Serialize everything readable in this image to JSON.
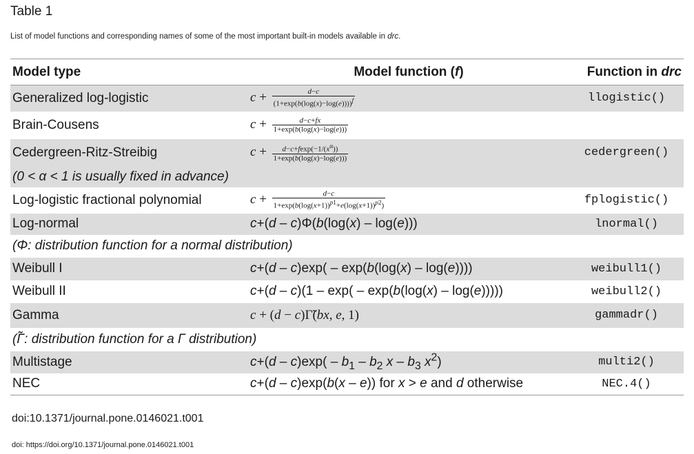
{
  "title": "Table 1",
  "caption_main": "List of model functions and corresponding names of some of the most important built-in models available in ",
  "caption_em": "drc",
  "caption_end": ".",
  "headers": {
    "model_type": "Model type",
    "model_function": "Model function (",
    "model_function_var": "f",
    "model_function_end": ")",
    "function_in": "Function in ",
    "function_in_em": "drc"
  },
  "rows": [
    {
      "type": "Generalized log-logistic",
      "func": "llogistic()"
    },
    {
      "type": "Brain-Cousens",
      "func": ""
    },
    {
      "type": "Cedergreen-Ritz-Streibig",
      "func": "cedergreen()"
    },
    {
      "note": "(0 < α < 1 is usually fixed in advance)"
    },
    {
      "type": "Log-logistic fractional polynomial",
      "func": "fplogistic()"
    },
    {
      "type": "Log-normal",
      "func": "lnormal()"
    },
    {
      "note": "(Φ: distribution function for a normal distribution)"
    },
    {
      "type": "Weibull I",
      "func": "weibull1()"
    },
    {
      "type": "Weibull II",
      "func": "weibull2()"
    },
    {
      "type": "Gamma",
      "func": "gammadr()"
    },
    {
      "note": "(Γ̃: distribution function for a Γ distribution)"
    },
    {
      "type": "Multistage",
      "func": "multi2()"
    },
    {
      "type": "NEC",
      "func": "NEC.4()"
    }
  ],
  "doi_line": "doi:10.1371/journal.pone.0146021.t001",
  "doi_footer": "doi: https://doi.org/10.1371/journal.pone.0146021.t001",
  "colors": {
    "row_shade": "#dcdcdc",
    "rule": "#999999",
    "text": "#1a1a1a"
  }
}
